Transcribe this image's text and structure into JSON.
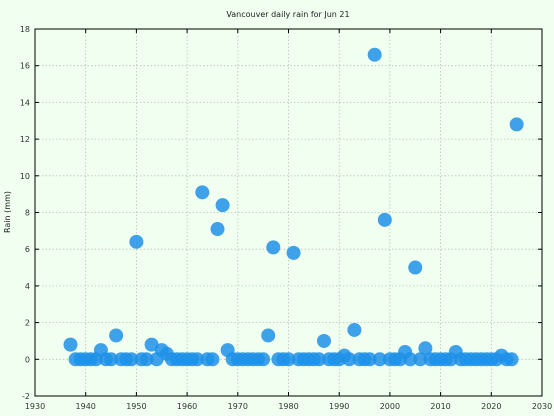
{
  "chart_data": {
    "type": "scatter",
    "title": "Vancouver daily rain for Jun 21",
    "xlabel": "",
    "ylabel": "Rain (mm)",
    "xlim": [
      1930,
      2030
    ],
    "ylim": [
      -2,
      18
    ],
    "xticks": [
      1930,
      1940,
      1950,
      1960,
      1970,
      1980,
      1990,
      2000,
      2010,
      2020,
      2030
    ],
    "yticks": [
      -2,
      0,
      2,
      4,
      6,
      8,
      10,
      12,
      14,
      16,
      18
    ],
    "grid": true,
    "colors": {
      "points": "#1e90e8",
      "background": "#f0fff0"
    },
    "points": [
      {
        "x": 1937,
        "y": 0.8
      },
      {
        "x": 1938,
        "y": 0
      },
      {
        "x": 1939,
        "y": 0
      },
      {
        "x": 1940,
        "y": 0
      },
      {
        "x": 1941,
        "y": 0
      },
      {
        "x": 1942,
        "y": 0
      },
      {
        "x": 1943,
        "y": 0.5
      },
      {
        "x": 1944,
        "y": 0
      },
      {
        "x": 1945,
        "y": 0
      },
      {
        "x": 1946,
        "y": 1.3
      },
      {
        "x": 1947,
        "y": 0
      },
      {
        "x": 1948,
        "y": 0
      },
      {
        "x": 1949,
        "y": 0
      },
      {
        "x": 1950,
        "y": 6.4
      },
      {
        "x": 1951,
        "y": 0
      },
      {
        "x": 1952,
        "y": 0
      },
      {
        "x": 1953,
        "y": 0.8
      },
      {
        "x": 1954,
        "y": 0
      },
      {
        "x": 1955,
        "y": 0.5
      },
      {
        "x": 1956,
        "y": 0.3
      },
      {
        "x": 1957,
        "y": 0
      },
      {
        "x": 1958,
        "y": 0
      },
      {
        "x": 1959,
        "y": 0
      },
      {
        "x": 1960,
        "y": 0
      },
      {
        "x": 1961,
        "y": 0
      },
      {
        "x": 1962,
        "y": 0
      },
      {
        "x": 1963,
        "y": 9.1
      },
      {
        "x": 1964,
        "y": 0
      },
      {
        "x": 1965,
        "y": 0
      },
      {
        "x": 1966,
        "y": 7.1
      },
      {
        "x": 1967,
        "y": 8.4
      },
      {
        "x": 1968,
        "y": 0.5
      },
      {
        "x": 1969,
        "y": 0
      },
      {
        "x": 1970,
        "y": 0
      },
      {
        "x": 1971,
        "y": 0
      },
      {
        "x": 1972,
        "y": 0
      },
      {
        "x": 1973,
        "y": 0
      },
      {
        "x": 1974,
        "y": 0
      },
      {
        "x": 1975,
        "y": 0
      },
      {
        "x": 1976,
        "y": 1.3
      },
      {
        "x": 1977,
        "y": 6.1
      },
      {
        "x": 1978,
        "y": 0
      },
      {
        "x": 1979,
        "y": 0
      },
      {
        "x": 1980,
        "y": 0
      },
      {
        "x": 1981,
        "y": 5.8
      },
      {
        "x": 1982,
        "y": 0
      },
      {
        "x": 1983,
        "y": 0
      },
      {
        "x": 1984,
        "y": 0
      },
      {
        "x": 1985,
        "y": 0
      },
      {
        "x": 1986,
        "y": 0
      },
      {
        "x": 1987,
        "y": 1.0
      },
      {
        "x": 1988,
        "y": 0
      },
      {
        "x": 1989,
        "y": 0
      },
      {
        "x": 1990,
        "y": 0
      },
      {
        "x": 1991,
        "y": 0.2
      },
      {
        "x": 1992,
        "y": 0
      },
      {
        "x": 1993,
        "y": 1.6
      },
      {
        "x": 1994,
        "y": 0
      },
      {
        "x": 1995,
        "y": 0
      },
      {
        "x": 1996,
        "y": 0
      },
      {
        "x": 1997,
        "y": 16.6
      },
      {
        "x": 1998,
        "y": 0
      },
      {
        "x": 1999,
        "y": 7.6
      },
      {
        "x": 2000,
        "y": 0
      },
      {
        "x": 2001,
        "y": 0
      },
      {
        "x": 2002,
        "y": 0
      },
      {
        "x": 2003,
        "y": 0.4
      },
      {
        "x": 2004,
        "y": 0
      },
      {
        "x": 2005,
        "y": 5.0
      },
      {
        "x": 2006,
        "y": 0
      },
      {
        "x": 2007,
        "y": 0.6
      },
      {
        "x": 2008,
        "y": 0
      },
      {
        "x": 2009,
        "y": 0
      },
      {
        "x": 2010,
        "y": 0
      },
      {
        "x": 2011,
        "y": 0
      },
      {
        "x": 2012,
        "y": 0
      },
      {
        "x": 2013,
        "y": 0.4
      },
      {
        "x": 2014,
        "y": 0
      },
      {
        "x": 2015,
        "y": 0
      },
      {
        "x": 2016,
        "y": 0
      },
      {
        "x": 2017,
        "y": 0
      },
      {
        "x": 2018,
        "y": 0
      },
      {
        "x": 2019,
        "y": 0
      },
      {
        "x": 2020,
        "y": 0
      },
      {
        "x": 2021,
        "y": 0
      },
      {
        "x": 2022,
        "y": 0.2
      },
      {
        "x": 2023,
        "y": 0
      },
      {
        "x": 2024,
        "y": 0
      },
      {
        "x": 2025,
        "y": 12.8
      }
    ]
  }
}
